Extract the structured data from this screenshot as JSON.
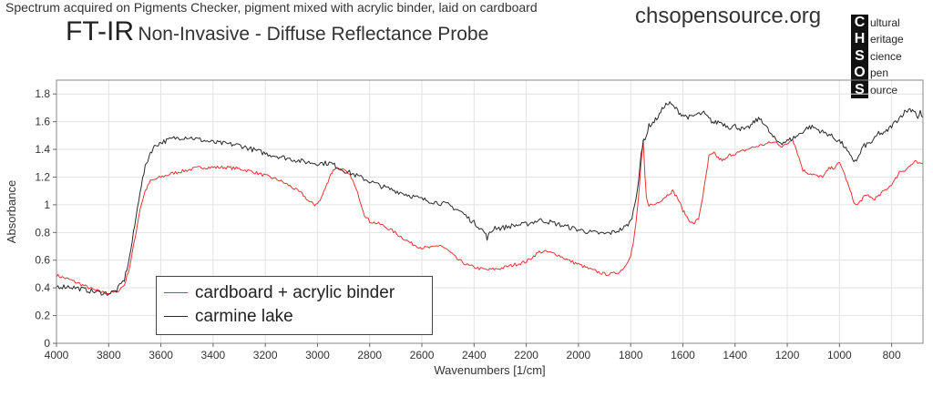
{
  "header": {
    "subtitle": "Spectrum acquired on Pigments Checker, pigment mixed with acrylic binder, laid on cardboard",
    "title_main": "FT-IR",
    "title_rest": "Non-Invasive - Diffuse Reflectance Probe",
    "site": "chsopensource.org"
  },
  "logo": {
    "letters": [
      "C",
      "H",
      "S",
      "O",
      "S"
    ],
    "words": [
      "ultural",
      "eritage",
      "cience",
      "pen",
      "ource"
    ]
  },
  "chart_data": {
    "type": "line",
    "xlabel": "Wavenumbers [1/cm]",
    "ylabel": "Absorbance",
    "xlim": [
      4000,
      680
    ],
    "ylim": [
      0,
      1.9
    ],
    "x_reversed": true,
    "x_ticks": [
      4000,
      3800,
      3600,
      3400,
      3200,
      3000,
      2800,
      2600,
      2400,
      2200,
      2000,
      1800,
      1600,
      1400,
      1200,
      1000,
      800
    ],
    "y_ticks": [
      0,
      0.2,
      0.4,
      0.6,
      0.8,
      1,
      1.2,
      1.4,
      1.6,
      1.8
    ],
    "grid": true,
    "legend_position": "bottom-left",
    "series": [
      {
        "name": "cardboard + acrylic binder",
        "color": "#ee3333",
        "noise": 0.012,
        "points": [
          [
            4000,
            0.49
          ],
          [
            3950,
            0.46
          ],
          [
            3900,
            0.42
          ],
          [
            3850,
            0.38
          ],
          [
            3800,
            0.36
          ],
          [
            3770,
            0.37
          ],
          [
            3740,
            0.42
          ],
          [
            3720,
            0.55
          ],
          [
            3700,
            0.75
          ],
          [
            3680,
            0.97
          ],
          [
            3660,
            1.1
          ],
          [
            3640,
            1.17
          ],
          [
            3600,
            1.2
          ],
          [
            3550,
            1.23
          ],
          [
            3500,
            1.25
          ],
          [
            3450,
            1.27
          ],
          [
            3400,
            1.27
          ],
          [
            3350,
            1.27
          ],
          [
            3300,
            1.26
          ],
          [
            3250,
            1.24
          ],
          [
            3200,
            1.21
          ],
          [
            3150,
            1.18
          ],
          [
            3100,
            1.13
          ],
          [
            3060,
            1.08
          ],
          [
            3030,
            1.02
          ],
          [
            3010,
            1.0
          ],
          [
            2990,
            1.03
          ],
          [
            2970,
            1.12
          ],
          [
            2950,
            1.22
          ],
          [
            2930,
            1.27
          ],
          [
            2900,
            1.25
          ],
          [
            2870,
            1.2
          ],
          [
            2840,
            1.05
          ],
          [
            2820,
            0.93
          ],
          [
            2800,
            0.88
          ],
          [
            2760,
            0.86
          ],
          [
            2720,
            0.82
          ],
          [
            2680,
            0.77
          ],
          [
            2640,
            0.72
          ],
          [
            2600,
            0.69
          ],
          [
            2560,
            0.69
          ],
          [
            2530,
            0.71
          ],
          [
            2500,
            0.67
          ],
          [
            2460,
            0.6
          ],
          [
            2420,
            0.56
          ],
          [
            2380,
            0.54
          ],
          [
            2350,
            0.53
          ],
          [
            2300,
            0.54
          ],
          [
            2260,
            0.56
          ],
          [
            2200,
            0.59
          ],
          [
            2150,
            0.66
          ],
          [
            2120,
            0.66
          ],
          [
            2080,
            0.64
          ],
          [
            2040,
            0.6
          ],
          [
            2000,
            0.57
          ],
          [
            1950,
            0.53
          ],
          [
            1900,
            0.5
          ],
          [
            1870,
            0.5
          ],
          [
            1840,
            0.52
          ],
          [
            1820,
            0.56
          ],
          [
            1800,
            0.64
          ],
          [
            1790,
            0.72
          ],
          [
            1780,
            0.86
          ],
          [
            1770,
            1.05
          ],
          [
            1760,
            1.3
          ],
          [
            1752,
            1.46
          ],
          [
            1745,
            1.2
          ],
          [
            1740,
            1.05
          ],
          [
            1730,
            1.0
          ],
          [
            1710,
            1.0
          ],
          [
            1680,
            1.04
          ],
          [
            1660,
            1.07
          ],
          [
            1640,
            1.1
          ],
          [
            1620,
            1.05
          ],
          [
            1600,
            0.96
          ],
          [
            1580,
            0.9
          ],
          [
            1560,
            0.86
          ],
          [
            1540,
            0.9
          ],
          [
            1520,
            1.1
          ],
          [
            1500,
            1.35
          ],
          [
            1480,
            1.37
          ],
          [
            1460,
            1.33
          ],
          [
            1440,
            1.32
          ],
          [
            1420,
            1.36
          ],
          [
            1400,
            1.37
          ],
          [
            1380,
            1.38
          ],
          [
            1340,
            1.41
          ],
          [
            1300,
            1.43
          ],
          [
            1260,
            1.45
          ],
          [
            1240,
            1.45
          ],
          [
            1220,
            1.42
          ],
          [
            1200,
            1.44
          ],
          [
            1180,
            1.48
          ],
          [
            1160,
            1.37
          ],
          [
            1140,
            1.25
          ],
          [
            1120,
            1.23
          ],
          [
            1100,
            1.22
          ],
          [
            1080,
            1.2
          ],
          [
            1060,
            1.21
          ],
          [
            1040,
            1.26
          ],
          [
            1020,
            1.27
          ],
          [
            1000,
            1.3
          ],
          [
            990,
            1.27
          ],
          [
            970,
            1.16
          ],
          [
            950,
            1.05
          ],
          [
            940,
            1.0
          ],
          [
            930,
            1.0
          ],
          [
            910,
            1.05
          ],
          [
            890,
            1.07
          ],
          [
            870,
            1.04
          ],
          [
            850,
            1.06
          ],
          [
            830,
            1.1
          ],
          [
            810,
            1.13
          ],
          [
            790,
            1.17
          ],
          [
            770,
            1.24
          ],
          [
            750,
            1.25
          ],
          [
            730,
            1.28
          ],
          [
            710,
            1.31
          ],
          [
            690,
            1.29
          ],
          [
            680,
            1.3
          ]
        ]
      },
      {
        "name": "carmine lake",
        "color": "#2a2a2a",
        "noise": 0.018,
        "points": [
          [
            4000,
            0.41
          ],
          [
            3950,
            0.41
          ],
          [
            3900,
            0.39
          ],
          [
            3850,
            0.37
          ],
          [
            3800,
            0.36
          ],
          [
            3770,
            0.38
          ],
          [
            3740,
            0.46
          ],
          [
            3720,
            0.62
          ],
          [
            3700,
            0.85
          ],
          [
            3680,
            1.1
          ],
          [
            3660,
            1.27
          ],
          [
            3640,
            1.38
          ],
          [
            3620,
            1.43
          ],
          [
            3600,
            1.45
          ],
          [
            3550,
            1.48
          ],
          [
            3500,
            1.49
          ],
          [
            3450,
            1.47
          ],
          [
            3400,
            1.45
          ],
          [
            3350,
            1.44
          ],
          [
            3300,
            1.43
          ],
          [
            3250,
            1.4
          ],
          [
            3200,
            1.37
          ],
          [
            3150,
            1.35
          ],
          [
            3100,
            1.33
          ],
          [
            3050,
            1.31
          ],
          [
            3000,
            1.3
          ],
          [
            2970,
            1.3
          ],
          [
            2950,
            1.3
          ],
          [
            2930,
            1.28
          ],
          [
            2900,
            1.25
          ],
          [
            2850,
            1.21
          ],
          [
            2800,
            1.17
          ],
          [
            2750,
            1.13
          ],
          [
            2700,
            1.1
          ],
          [
            2650,
            1.07
          ],
          [
            2600,
            1.04
          ],
          [
            2550,
            1.02
          ],
          [
            2500,
            1.0
          ],
          [
            2450,
            0.95
          ],
          [
            2420,
            0.9
          ],
          [
            2400,
            0.87
          ],
          [
            2380,
            0.84
          ],
          [
            2360,
            0.8
          ],
          [
            2350,
            0.76
          ],
          [
            2340,
            0.79
          ],
          [
            2320,
            0.84
          ],
          [
            2300,
            0.83
          ],
          [
            2250,
            0.85
          ],
          [
            2200,
            0.86
          ],
          [
            2150,
            0.89
          ],
          [
            2120,
            0.88
          ],
          [
            2080,
            0.86
          ],
          [
            2040,
            0.84
          ],
          [
            2000,
            0.82
          ],
          [
            1950,
            0.8
          ],
          [
            1900,
            0.79
          ],
          [
            1870,
            0.8
          ],
          [
            1840,
            0.82
          ],
          [
            1820,
            0.84
          ],
          [
            1800,
            0.88
          ],
          [
            1790,
            0.95
          ],
          [
            1780,
            1.05
          ],
          [
            1770,
            1.18
          ],
          [
            1760,
            1.35
          ],
          [
            1750,
            1.47
          ],
          [
            1740,
            1.5
          ],
          [
            1730,
            1.57
          ],
          [
            1710,
            1.6
          ],
          [
            1690,
            1.65
          ],
          [
            1670,
            1.72
          ],
          [
            1650,
            1.73
          ],
          [
            1630,
            1.7
          ],
          [
            1610,
            1.66
          ],
          [
            1590,
            1.64
          ],
          [
            1570,
            1.63
          ],
          [
            1550,
            1.65
          ],
          [
            1520,
            1.66
          ],
          [
            1500,
            1.62
          ],
          [
            1480,
            1.59
          ],
          [
            1460,
            1.6
          ],
          [
            1440,
            1.58
          ],
          [
            1420,
            1.56
          ],
          [
            1400,
            1.57
          ],
          [
            1380,
            1.55
          ],
          [
            1360,
            1.54
          ],
          [
            1340,
            1.57
          ],
          [
            1320,
            1.61
          ],
          [
            1300,
            1.62
          ],
          [
            1280,
            1.56
          ],
          [
            1260,
            1.5
          ],
          [
            1240,
            1.46
          ],
          [
            1220,
            1.45
          ],
          [
            1200,
            1.46
          ],
          [
            1180,
            1.48
          ],
          [
            1160,
            1.5
          ],
          [
            1140,
            1.53
          ],
          [
            1120,
            1.56
          ],
          [
            1100,
            1.56
          ],
          [
            1080,
            1.54
          ],
          [
            1060,
            1.52
          ],
          [
            1040,
            1.51
          ],
          [
            1020,
            1.48
          ],
          [
            1000,
            1.46
          ],
          [
            980,
            1.42
          ],
          [
            960,
            1.35
          ],
          [
            945,
            1.32
          ],
          [
            930,
            1.33
          ],
          [
            910,
            1.42
          ],
          [
            890,
            1.44
          ],
          [
            870,
            1.46
          ],
          [
            850,
            1.52
          ],
          [
            830,
            1.51
          ],
          [
            810,
            1.55
          ],
          [
            790,
            1.59
          ],
          [
            770,
            1.63
          ],
          [
            750,
            1.67
          ],
          [
            730,
            1.69
          ],
          [
            710,
            1.68
          ],
          [
            700,
            1.62
          ],
          [
            690,
            1.67
          ],
          [
            680,
            1.63
          ]
        ]
      }
    ]
  }
}
